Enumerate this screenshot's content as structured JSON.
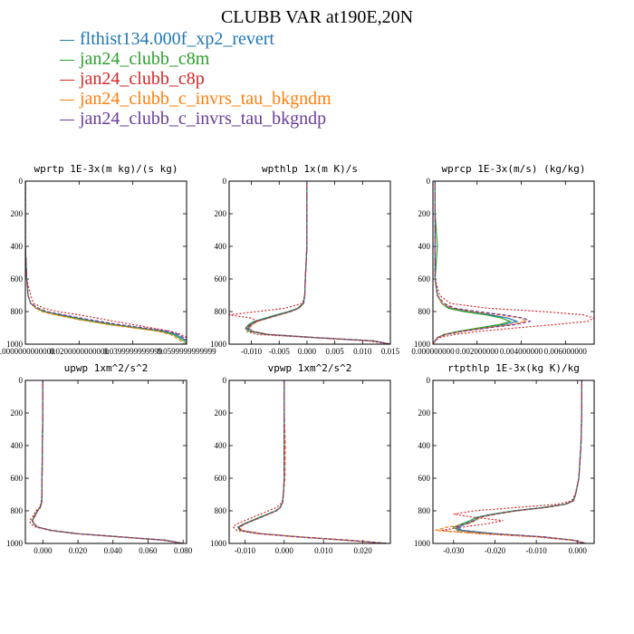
{
  "figure": {
    "title": "CLUBB VAR at190E,20N"
  },
  "legend": [
    {
      "name": "flthist134.000f_xp2_revert",
      "color": "#1f77b4",
      "dash": "solid"
    },
    {
      "name": "jan24_clubb_c8m",
      "color": "#2ca02c",
      "dash": "solid"
    },
    {
      "name": "jan24_clubb_c8p",
      "color": "#d62728",
      "dash": "dotted"
    },
    {
      "name": "jan24_clubb_c_invrs_tau_bkgndm",
      "color": "#ff7f0e",
      "dash": "dashed"
    },
    {
      "name": "jan24_clubb_c_invrs_tau_bkgndp",
      "color": "#6a3d9a",
      "dash": "dashed"
    }
  ],
  "chart_data": [
    {
      "type": "line",
      "title": "wprtp  1E-3x(m kg)/(s kg)",
      "xlim": [
        0.0,
        0.06
      ],
      "ylim": [
        1000,
        0
      ],
      "xticks": [
        0.0,
        0.02,
        0.04,
        0.06
      ],
      "xtick_labels": [
        "0.0000000000000",
        "0.0200000000000",
        "0.0399999999999",
        "0.0599999999999"
      ],
      "yticks": [
        0,
        200,
        400,
        600,
        800,
        1000
      ],
      "y": [
        0,
        200,
        400,
        600,
        700,
        750,
        780,
        800,
        820,
        850,
        880,
        900,
        920,
        940,
        960,
        980,
        1000
      ],
      "series": [
        {
          "values": [
            0,
            0,
            0,
            0.0005,
            0.001,
            0.002,
            0.004,
            0.007,
            0.013,
            0.022,
            0.033,
            0.042,
            0.051,
            0.056,
            0.058,
            0.06,
            0.06
          ]
        },
        {
          "values": [
            0,
            0,
            0,
            0.0005,
            0.001,
            0.002,
            0.004,
            0.007,
            0.012,
            0.021,
            0.032,
            0.041,
            0.05,
            0.055,
            0.057,
            0.059,
            0.06
          ]
        },
        {
          "values": [
            0,
            0,
            0,
            0.0005,
            0.002,
            0.003,
            0.007,
            0.012,
            0.02,
            0.03,
            0.04,
            0.047,
            0.054,
            0.058,
            0.06,
            0.06,
            0.06
          ]
        },
        {
          "values": [
            0,
            0,
            0,
            0.0005,
            0.001,
            0.002,
            0.004,
            0.006,
            0.011,
            0.02,
            0.031,
            0.04,
            0.049,
            0.054,
            0.056,
            0.058,
            0.059
          ]
        },
        {
          "values": [
            0,
            0,
            0,
            0.0005,
            0.001,
            0.002,
            0.005,
            0.008,
            0.014,
            0.024,
            0.035,
            0.044,
            0.053,
            0.057,
            0.059,
            0.06,
            0.06
          ]
        }
      ]
    },
    {
      "type": "line",
      "title": "wpthlp  1x(m K)/s",
      "xlim": [
        -0.014,
        0.015
      ],
      "ylim": [
        1000,
        0
      ],
      "xticks": [
        -0.01,
        -0.005,
        0.0,
        0.005,
        0.01,
        0.015
      ],
      "xtick_labels": [
        "-0.010",
        "-0.005",
        "0.000",
        "0.005",
        "0.010",
        "0.015"
      ],
      "yticks": [
        0,
        200,
        400,
        600,
        800,
        1000
      ],
      "y": [
        0,
        150,
        200,
        400,
        600,
        700,
        750,
        780,
        800,
        820,
        840,
        860,
        880,
        900,
        920,
        940,
        960,
        980,
        1000
      ],
      "series": [
        {
          "values": [
            0,
            0,
            0,
            0,
            -0.0003,
            -0.0004,
            -0.0006,
            -0.0015,
            -0.003,
            -0.005,
            -0.007,
            -0.009,
            -0.01,
            -0.0105,
            -0.01,
            -0.007,
            0.002,
            0.012,
            0.015
          ]
        },
        {
          "values": [
            0,
            0,
            0,
            0,
            -0.0003,
            -0.0004,
            -0.0007,
            -0.0017,
            -0.0033,
            -0.0055,
            -0.0075,
            -0.0095,
            -0.0105,
            -0.011,
            -0.0105,
            -0.0075,
            0.0015,
            0.012,
            0.015
          ]
        },
        {
          "values": [
            0,
            0,
            0,
            0,
            -0.0003,
            -0.0004,
            -0.0008,
            -0.004,
            -0.009,
            -0.014,
            -0.01,
            -0.009,
            -0.01,
            -0.011,
            -0.011,
            -0.009,
            0.001,
            0.011,
            0.015
          ]
        },
        {
          "values": [
            0,
            0,
            0,
            0,
            -0.0003,
            -0.0004,
            -0.0006,
            -0.0014,
            -0.0028,
            -0.0048,
            -0.0068,
            -0.0088,
            -0.0098,
            -0.0103,
            -0.0098,
            -0.0068,
            0.002,
            0.012,
            0.015
          ]
        },
        {
          "values": [
            0,
            0,
            0,
            0,
            -0.0003,
            -0.0004,
            -0.0006,
            -0.0016,
            -0.0031,
            -0.0052,
            -0.0072,
            -0.0092,
            -0.0102,
            -0.0108,
            -0.0102,
            -0.0072,
            0.0018,
            0.012,
            0.015
          ]
        }
      ]
    },
    {
      "type": "line",
      "title": "wprcp  1E-3x(m/s) (kg/kg)",
      "xlim": [
        0.0,
        0.0073
      ],
      "ylim": [
        1000,
        0
      ],
      "xticks": [
        0.0,
        0.002,
        0.004,
        0.006
      ],
      "xtick_labels": [
        "0.000000000",
        "0.002000000",
        "0.004000000",
        "0.006000000"
      ],
      "yticks": [
        0,
        200,
        400,
        600,
        800,
        1000
      ],
      "y": [
        0,
        200,
        400,
        600,
        700,
        750,
        780,
        800,
        820,
        840,
        860,
        880,
        900,
        920,
        940,
        960,
        980,
        1000
      ],
      "series": [
        {
          "values": [
            0.0001,
            0.0001,
            0.0001,
            0.0001,
            0.0002,
            0.0004,
            0.0008,
            0.0016,
            0.0026,
            0.0034,
            0.0038,
            0.0032,
            0.0022,
            0.0013,
            0.0006,
            0.0002,
            0.0001,
            0
          ]
        },
        {
          "values": [
            0.0001,
            0.0001,
            0.0002,
            0.0001,
            0.0002,
            0.0004,
            0.0007,
            0.0014,
            0.0024,
            0.0031,
            0.0035,
            0.003,
            0.0021,
            0.0012,
            0.0005,
            0.0002,
            0.0001,
            0
          ]
        },
        {
          "values": [
            0.0001,
            0.0001,
            0.0001,
            0.0001,
            0.0003,
            0.0008,
            0.0025,
            0.005,
            0.0068,
            0.0073,
            0.007,
            0.0055,
            0.0038,
            0.0022,
            0.001,
            0.0003,
            0.0001,
            0
          ]
        },
        {
          "values": [
            0.0001,
            0.0001,
            0.0001,
            0.0001,
            0.0002,
            0.0004,
            0.0009,
            0.0018,
            0.003,
            0.004,
            0.0042,
            0.0035,
            0.0024,
            0.0014,
            0.0006,
            0.0002,
            0.0001,
            0
          ]
        },
        {
          "values": [
            0.0001,
            0.0001,
            0.0001,
            0.0001,
            0.0002,
            0.0005,
            0.001,
            0.002,
            0.0032,
            0.0041,
            0.0044,
            0.0037,
            0.0025,
            0.0014,
            0.0006,
            0.0002,
            0.0001,
            0
          ]
        }
      ]
    },
    {
      "type": "line",
      "title": "upwp  1xm^2/s^2",
      "xlim": [
        -0.01,
        0.082
      ],
      "ylim": [
        1000,
        0
      ],
      "xticks": [
        0.0,
        0.02,
        0.04,
        0.06,
        0.08
      ],
      "xtick_labels": [
        "0.000",
        "0.020",
        "0.040",
        "0.060",
        "0.080"
      ],
      "yticks": [
        0,
        200,
        400,
        600,
        800,
        1000
      ],
      "y": [
        0,
        200,
        400,
        600,
        700,
        750,
        780,
        800,
        820,
        840,
        860,
        880,
        900,
        920,
        940,
        960,
        980,
        1000
      ],
      "series": [
        {
          "values": [
            0.0,
            0.0,
            -0.0003,
            -0.0005,
            -0.0005,
            -0.0007,
            -0.0015,
            -0.003,
            -0.004,
            -0.005,
            -0.006,
            -0.005,
            -0.003,
            0.005,
            0.02,
            0.045,
            0.07,
            0.08
          ]
        },
        {
          "values": [
            0.0,
            0.0,
            -0.0003,
            -0.0005,
            -0.0005,
            -0.0007,
            -0.0016,
            -0.0032,
            -0.0042,
            -0.0052,
            -0.0062,
            -0.0052,
            -0.003,
            0.0045,
            0.019,
            0.044,
            0.069,
            0.08
          ]
        },
        {
          "values": [
            0.0,
            0.0,
            -0.0003,
            -0.0005,
            -0.0006,
            -0.001,
            -0.002,
            -0.004,
            -0.005,
            -0.006,
            -0.0075,
            -0.007,
            -0.004,
            0.004,
            0.018,
            0.043,
            0.068,
            0.08
          ]
        },
        {
          "values": [
            0.0,
            0.0,
            -0.0003,
            -0.0005,
            -0.0005,
            -0.0007,
            -0.0014,
            -0.0028,
            -0.0038,
            -0.0048,
            -0.0058,
            -0.0048,
            -0.0028,
            0.005,
            0.02,
            0.045,
            0.07,
            0.08
          ]
        },
        {
          "values": [
            0.0,
            0.0,
            -0.0003,
            -0.0005,
            -0.0005,
            -0.0007,
            -0.0015,
            -0.0031,
            -0.0041,
            -0.0051,
            -0.0061,
            -0.0051,
            -0.0031,
            0.0047,
            0.0195,
            0.0445,
            0.0695,
            0.08
          ]
        }
      ]
    },
    {
      "type": "line",
      "title": "vpwp  1xm^2/s^2",
      "xlim": [
        -0.014,
        0.027
      ],
      "ylim": [
        1000,
        0
      ],
      "xticks": [
        -0.01,
        0.0,
        0.01,
        0.02
      ],
      "xtick_labels": [
        "-0.010",
        "0.000",
        "0.010",
        "0.020"
      ],
      "yticks": [
        0,
        200,
        400,
        600,
        800,
        1000
      ],
      "y": [
        0,
        200,
        400,
        600,
        700,
        750,
        780,
        800,
        820,
        840,
        860,
        880,
        900,
        920,
        940,
        960,
        980,
        1000
      ],
      "series": [
        {
          "values": [
            0,
            0,
            0,
            0,
            -0.0002,
            -0.0004,
            -0.001,
            -0.002,
            -0.004,
            -0.006,
            -0.008,
            -0.01,
            -0.0115,
            -0.011,
            -0.006,
            0.004,
            0.016,
            0.026
          ]
        },
        {
          "values": [
            0,
            0,
            0,
            0,
            -0.0002,
            -0.0004,
            -0.0011,
            -0.0022,
            -0.0042,
            -0.0063,
            -0.0083,
            -0.0103,
            -0.0118,
            -0.0113,
            -0.0063,
            0.0038,
            0.0158,
            0.026
          ]
        },
        {
          "values": [
            0,
            0,
            0,
            0,
            -0.0002,
            -0.0006,
            -0.002,
            -0.004,
            -0.006,
            -0.008,
            -0.01,
            -0.012,
            -0.013,
            -0.012,
            -0.007,
            0.003,
            0.015,
            0.026
          ]
        },
        {
          "values": [
            0,
            0,
            0.0003,
            0.0002,
            -0.0002,
            -0.0004,
            -0.001,
            -0.0019,
            -0.0038,
            -0.0058,
            -0.0078,
            -0.0098,
            -0.0112,
            -0.0108,
            -0.0058,
            0.0042,
            0.0162,
            0.026
          ]
        },
        {
          "values": [
            0,
            0,
            0,
            0,
            -0.0002,
            -0.0004,
            -0.001,
            -0.0021,
            -0.0041,
            -0.0061,
            -0.0081,
            -0.0101,
            -0.0116,
            -0.0111,
            -0.0061,
            0.004,
            0.016,
            0.026
          ]
        }
      ]
    },
    {
      "type": "line",
      "title": "rtpthlp  1E-3x(kg K)/kg",
      "xlim": [
        -0.035,
        0.004
      ],
      "ylim": [
        1000,
        0
      ],
      "xticks": [
        -0.03,
        -0.02,
        -0.01,
        0.0
      ],
      "xtick_labels": [
        "-0.030",
        "-0.020",
        "-0.010",
        "0.000"
      ],
      "yticks": [
        0,
        200,
        400,
        600,
        800,
        1000
      ],
      "y": [
        0,
        200,
        400,
        600,
        700,
        740,
        760,
        780,
        800,
        820,
        840,
        860,
        880,
        900,
        920,
        940,
        960,
        980,
        1000
      ],
      "series": [
        {
          "values": [
            0.001,
            0.001,
            0.0008,
            0.0003,
            -0.0005,
            -0.001,
            -0.003,
            -0.008,
            -0.015,
            -0.02,
            -0.024,
            -0.025,
            -0.027,
            -0.029,
            -0.028,
            -0.02,
            -0.008,
            -0.001,
            0.002
          ]
        },
        {
          "values": [
            0.001,
            0.001,
            0.0008,
            0.0003,
            -0.0005,
            -0.0012,
            -0.0032,
            -0.0085,
            -0.0155,
            -0.0205,
            -0.0245,
            -0.026,
            -0.028,
            -0.03,
            -0.029,
            -0.021,
            -0.009,
            -0.0012,
            0.002
          ]
        },
        {
          "values": [
            0.001,
            0.001,
            0.0008,
            0.0003,
            -0.0006,
            -0.0015,
            -0.005,
            -0.015,
            -0.025,
            -0.03,
            -0.025,
            -0.018,
            -0.022,
            -0.028,
            -0.033,
            -0.024,
            -0.01,
            -0.0015,
            0.002
          ]
        },
        {
          "values": [
            0.001,
            0.001,
            0.0008,
            0.0003,
            -0.0005,
            -0.001,
            -0.0028,
            -0.0075,
            -0.0145,
            -0.0195,
            -0.0235,
            -0.0245,
            -0.0265,
            -0.0315,
            -0.0345,
            -0.023,
            -0.0085,
            -0.001,
            0.002
          ]
        },
        {
          "values": [
            0.001,
            0.001,
            0.0008,
            0.0003,
            -0.0005,
            -0.0011,
            -0.0031,
            -0.0082,
            -0.0152,
            -0.0202,
            -0.0242,
            -0.0252,
            -0.0272,
            -0.0295,
            -0.0285,
            -0.0205,
            -0.0082,
            -0.0011,
            0.002
          ]
        }
      ]
    }
  ]
}
